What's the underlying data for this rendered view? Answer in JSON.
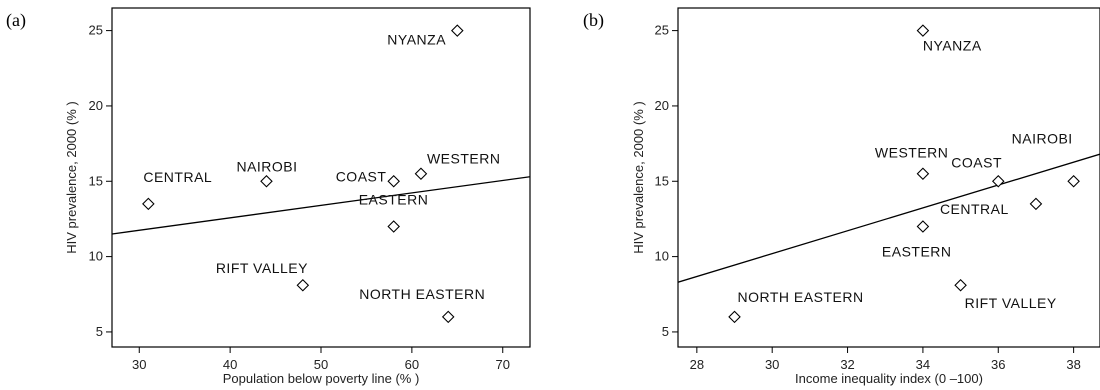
{
  "chart_data": [
    {
      "type": "scatter",
      "panel_label": "(a)",
      "xlabel": "Population below poverty line (% )",
      "ylabel": "HIV prevalence,  2000 (% )",
      "xlim": [
        27,
        73
      ],
      "ylim": [
        4,
        26.5
      ],
      "xticks": [
        30,
        40,
        50,
        60,
        70
      ],
      "yticks": [
        5,
        10,
        15,
        20,
        25
      ],
      "points": [
        {
          "label": "NYANZA",
          "x": 65,
          "y": 25
        },
        {
          "label": "CENTRAL",
          "x": 31,
          "y": 13.5
        },
        {
          "label": "NAIROBI",
          "x": 44,
          "y": 15
        },
        {
          "label": "COAST",
          "x": 58,
          "y": 15
        },
        {
          "label": "WESTERN",
          "x": 61,
          "y": 15.5
        },
        {
          "label": "EASTERN",
          "x": 58,
          "y": 12
        },
        {
          "label": "RIFT VALLEY",
          "x": 48,
          "y": 8.1
        },
        {
          "label": "NORTH EASTERN",
          "x": 64,
          "y": 6
        }
      ],
      "trend_line": {
        "x": [
          27,
          73
        ],
        "y": [
          11.5,
          15.3
        ]
      },
      "grid": false
    },
    {
      "type": "scatter",
      "panel_label": "(b)",
      "xlabel": "Income inequality index (0 –100)",
      "ylabel": "HIV prevalence,  2000 (% )",
      "xlim": [
        27.5,
        38.7
      ],
      "ylim": [
        4,
        26.5
      ],
      "xticks": [
        28,
        30,
        32,
        34,
        36,
        38
      ],
      "yticks": [
        5,
        10,
        15,
        20,
        25
      ],
      "points": [
        {
          "label": "NYANZA",
          "x": 34,
          "y": 25
        },
        {
          "label": "NAIROBI",
          "x": 38,
          "y": 15
        },
        {
          "label": "WESTERN",
          "x": 34,
          "y": 15.5
        },
        {
          "label": "COAST",
          "x": 36,
          "y": 15
        },
        {
          "label": "CENTRAL",
          "x": 37,
          "y": 13.5
        },
        {
          "label": "EASTERN",
          "x": 34,
          "y": 12
        },
        {
          "label": "RIFT VALLEY",
          "x": 35,
          "y": 8.1
        },
        {
          "label": "NORTH EASTERN",
          "x": 29,
          "y": 6
        }
      ],
      "trend_line": {
        "x": [
          27.5,
          38.7
        ],
        "y": [
          8.3,
          16.8
        ]
      },
      "grid": false
    }
  ]
}
